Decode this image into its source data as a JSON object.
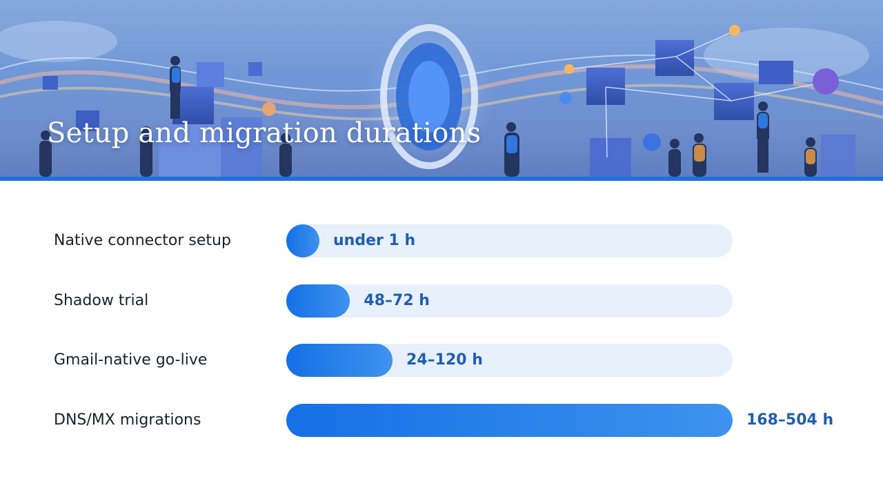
{
  "title": "Setup and migration durations",
  "colors": {
    "accent": "#1f70e0",
    "bar_start": "#1570e6",
    "bar_end": "#3f92ef",
    "track": "#e8f0fb",
    "value_text": "#1e5fb0",
    "label_text": "#1c1f2a"
  },
  "chart_data": {
    "type": "bar",
    "orientation": "horizontal",
    "title": "Setup and migration durations",
    "xlabel": "",
    "ylabel": "",
    "unit": "h",
    "xlim": [
      0,
      504
    ],
    "grid": false,
    "categories": [
      "Native connector setup",
      "Shadow trial",
      "Gmail-native go-live",
      "DNS/MX migrations"
    ],
    "value_labels": [
      "under 1 h",
      "48–72 h",
      "24–120 h",
      "168–504 h"
    ],
    "values": [
      1,
      72,
      120,
      504
    ],
    "ranges": [
      [
        0,
        1
      ],
      [
        48,
        72
      ],
      [
        24,
        120
      ],
      [
        168,
        504
      ]
    ]
  }
}
